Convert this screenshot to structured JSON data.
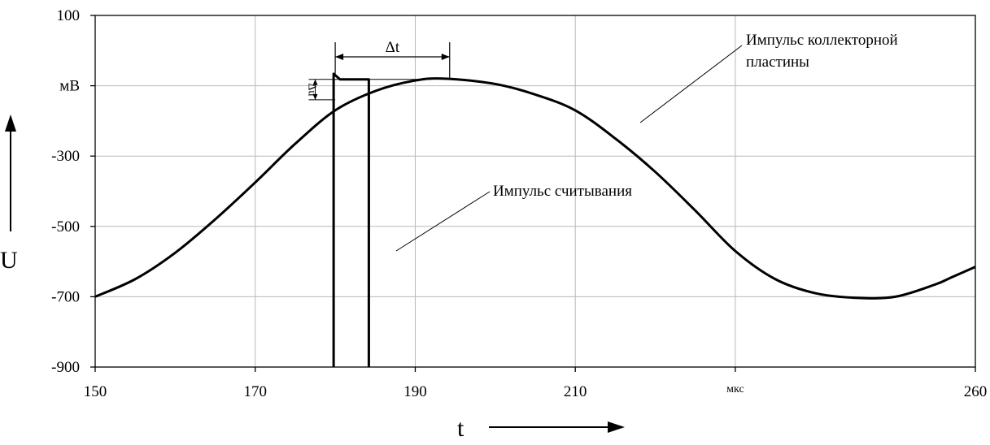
{
  "chart_data": {
    "type": "line",
    "xlim": [
      150,
      260
    ],
    "ylim": [
      -900,
      100
    ],
    "x_ticks": [
      150,
      170,
      190,
      210,
      230,
      260
    ],
    "x_tick_labels": [
      "150",
      "170",
      "190",
      "210",
      "мкс",
      "260"
    ],
    "y_ticks": [
      100,
      -100,
      -300,
      -500,
      -700,
      -900
    ],
    "y_tick_labels": [
      "100",
      "мВ",
      "-300",
      "-500",
      "-700",
      "-900"
    ],
    "xlabel": "t",
    "ylabel": "U",
    "grid": true,
    "series": [
      {
        "name": "Импульс коллекторной пластины",
        "x": [
          150,
          155,
          160,
          165,
          170,
          175,
          180,
          185,
          190,
          194,
          200,
          205,
          210,
          215,
          220,
          225,
          230,
          235,
          240,
          245,
          250,
          255,
          257,
          260
        ],
        "y": [
          -700,
          -650,
          -575,
          -480,
          -375,
          -265,
          -170,
          -115,
          -85,
          -80,
          -95,
          -125,
          -170,
          -250,
          -345,
          -455,
          -570,
          -650,
          -690,
          -703,
          -700,
          -665,
          -645,
          -615
        ]
      },
      {
        "name": "Импульс считывания",
        "x": [
          179.8,
          179.8,
          180.6,
          184.2,
          184.2
        ],
        "y": [
          -900,
          -66,
          -82,
          -82,
          -900
        ]
      }
    ],
    "annotations": {
      "collector_label_line1": "Импульс коллекторной",
      "collector_label_line2": "пластины",
      "read_label": "Импульс считывания",
      "delta_t": "Δt",
      "delta_u": "Δu",
      "delta_t_from": 180,
      "delta_t_to": 194.3,
      "delta_u_top": -82,
      "delta_u_bottom": -140,
      "delta_u_x": 177.5
    }
  }
}
